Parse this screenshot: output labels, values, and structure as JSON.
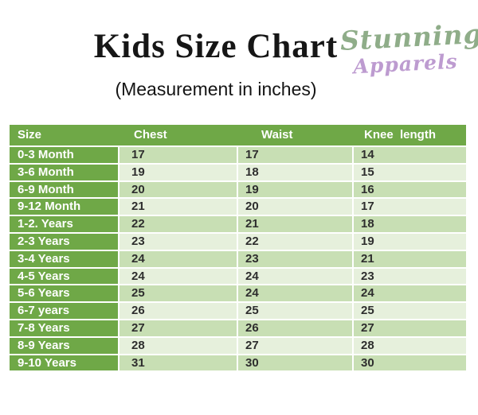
{
  "header": {
    "title": "Kids Size Chart",
    "subtitle": "(Measurement in inches)",
    "brand": {
      "name": "Stunning",
      "subname": "Apparels",
      "name_color": "#8fad89",
      "subname_color": "#bd9bd0"
    }
  },
  "table": {
    "columns": [
      "Size",
      "Chest",
      "Waist",
      "Knee  length"
    ],
    "rows": [
      {
        "size": "0-3 Month",
        "chest": "17",
        "waist": "17",
        "knee": "14"
      },
      {
        "size": "3-6 Month",
        "chest": "19",
        "waist": "18",
        "knee": "15"
      },
      {
        "size": "6-9 Month",
        "chest": "20",
        "waist": "19",
        "knee": "16"
      },
      {
        "size": "9-12 Month",
        "chest": "21",
        "waist": "20",
        "knee": "17"
      },
      {
        "size": "1-2. Years",
        "chest": "22",
        "waist": "21",
        "knee": "18"
      },
      {
        "size": "2-3 Years",
        "chest": "23",
        "waist": "22",
        "knee": "19"
      },
      {
        "size": "3-4 Years",
        "chest": "24",
        "waist": "23",
        "knee": "21"
      },
      {
        "size": "4-5 Years",
        "chest": "24",
        "waist": "24",
        "knee": "23"
      },
      {
        "size": "5-6 Years",
        "chest": "25",
        "waist": "24",
        "knee": "24"
      },
      {
        "size": "6-7 years",
        "chest": "26",
        "waist": "25",
        "knee": "25"
      },
      {
        "size": "7-8 Years",
        "chest": "27",
        "waist": "26",
        "knee": "27"
      },
      {
        "size": "8-9 Years",
        "chest": "28",
        "waist": "27",
        "knee": "28"
      },
      {
        "size": "9-10 Years",
        "chest": "31",
        "waist": "30",
        "knee": "30"
      }
    ],
    "colors": {
      "header_bg": "#6fa847",
      "header_text": "#ffffff",
      "row_band_light": "#c8dfb4",
      "row_band_lighter": "#e6f0dc",
      "value_text": "#2e2e2e"
    }
  }
}
